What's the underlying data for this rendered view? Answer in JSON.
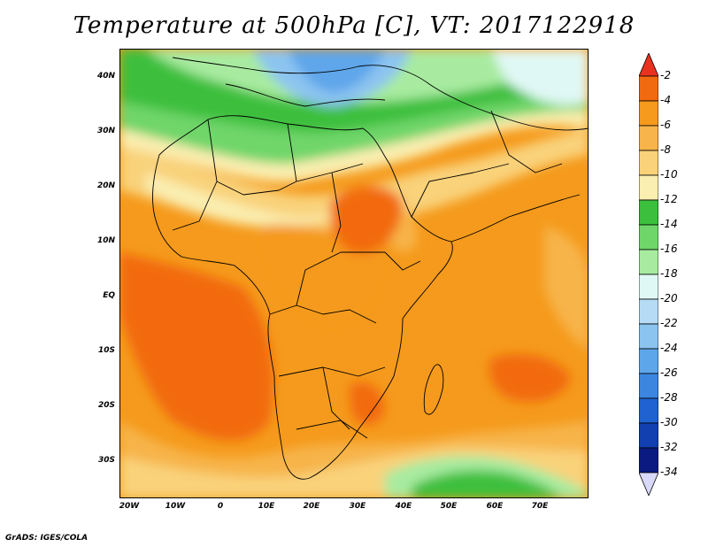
{
  "title": "Temperature at 500hPa [C], VT: 2017122918",
  "lat_labels": [
    "40N",
    "30N",
    "20N",
    "10N",
    "EQ",
    "10S",
    "20S",
    "30S"
  ],
  "lon_labels": [
    "20W",
    "10W",
    "0",
    "10E",
    "20E",
    "30E",
    "40E",
    "50E",
    "60E",
    "70E"
  ],
  "colorbar": {
    "labels": [
      "-2",
      "-4",
      "-6",
      "-8",
      "-10",
      "-12",
      "-14",
      "-16",
      "-18",
      "-20",
      "-22",
      "-24",
      "-26",
      "-28",
      "-30",
      "-32",
      "-34"
    ],
    "colors": [
      "#e8321f",
      "#f26a10",
      "#f59a1c",
      "#f7b44a",
      "#f9d27a",
      "#faeeb0",
      "#3cbf3c",
      "#6fd66a",
      "#a8eba0",
      "#e0f8f5",
      "#b6dcf5",
      "#8cc4f0",
      "#5ea6ea",
      "#3c86e0",
      "#2062d0",
      "#1240b0",
      "#0a1a80",
      "#d8d8f8"
    ]
  },
  "footer": "GrADS: IGES/COLA"
}
